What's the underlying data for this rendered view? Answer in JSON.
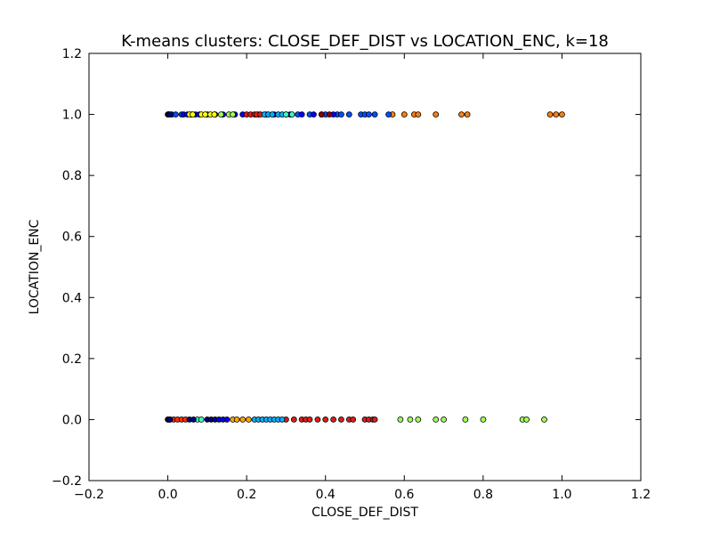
{
  "chart_data": {
    "type": "scatter",
    "title": "K-means clusters: CLOSE_DEF_DIST vs LOCATION_ENC, k=18",
    "xlabel": "CLOSE_DEF_DIST",
    "ylabel": "LOCATION_ENC",
    "xlim": [
      -0.2,
      1.2
    ],
    "ylim": [
      -0.2,
      1.2
    ],
    "x_ticks": [
      "−0.2",
      "0.0",
      "0.2",
      "0.4",
      "0.6",
      "0.8",
      "1.0",
      "1.2"
    ],
    "y_ticks": [
      "−0.2",
      "0.0",
      "0.2",
      "0.4",
      "0.6",
      "0.8",
      "1.0",
      "1.2"
    ],
    "grid": false,
    "legend": "none",
    "colors": [
      "#000080",
      "#0000ff",
      "#0050ff",
      "#00b0ff",
      "#40ffb8",
      "#a0ff58",
      "#ffff00",
      "#ffa500",
      "#ff7f0e",
      "#ff3000",
      "#dd1c1c",
      "#8b0000"
    ],
    "series": [
      {
        "color": "#ff7f0e",
        "points": [
          [
            0.57,
            1
          ],
          [
            0.6,
            1
          ],
          [
            0.625,
            1
          ],
          [
            0.635,
            1
          ],
          [
            0.68,
            1
          ],
          [
            0.745,
            1
          ],
          [
            0.76,
            1
          ],
          [
            0.97,
            1
          ],
          [
            0.985,
            1
          ],
          [
            1.0,
            1
          ]
        ]
      },
      {
        "color": "#0050ff",
        "points": [
          [
            0.003,
            1
          ],
          [
            0.01,
            1
          ],
          [
            0.02,
            1
          ],
          [
            0.035,
            1
          ],
          [
            0.3,
            1
          ],
          [
            0.33,
            1
          ],
          [
            0.36,
            1
          ],
          [
            0.4,
            1
          ],
          [
            0.43,
            1
          ],
          [
            0.44,
            1
          ],
          [
            0.46,
            1
          ],
          [
            0.49,
            1
          ],
          [
            0.5,
            1
          ],
          [
            0.51,
            1
          ],
          [
            0.525,
            1
          ],
          [
            0.56,
            1
          ]
        ]
      },
      {
        "color": "#0000ff",
        "points": [
          [
            0.04,
            1
          ],
          [
            0.05,
            1
          ],
          [
            0.06,
            1
          ],
          [
            0.07,
            1
          ],
          [
            0.08,
            1
          ],
          [
            0.1,
            1
          ],
          [
            0.12,
            1
          ],
          [
            0.14,
            1
          ],
          [
            0.17,
            1
          ],
          [
            0.19,
            1
          ],
          [
            0.23,
            1
          ],
          [
            0.25,
            1
          ],
          [
            0.27,
            1
          ],
          [
            0.31,
            1
          ],
          [
            0.34,
            1
          ],
          [
            0.37,
            1
          ],
          [
            0.39,
            1
          ],
          [
            0.42,
            1
          ]
        ]
      },
      {
        "color": "#ffff00",
        "points": [
          [
            0.055,
            1
          ],
          [
            0.063,
            1
          ],
          [
            0.085,
            1
          ],
          [
            0.095,
            1
          ],
          [
            0.108,
            1
          ],
          [
            0.118,
            1
          ]
        ]
      },
      {
        "color": "#a0ff58",
        "points": [
          [
            0.135,
            1
          ],
          [
            0.155,
            1
          ],
          [
            0.165,
            1
          ],
          [
            0.59,
            0
          ],
          [
            0.615,
            0
          ],
          [
            0.635,
            0
          ],
          [
            0.68,
            0
          ],
          [
            0.7,
            0
          ],
          [
            0.755,
            0
          ],
          [
            0.8,
            0
          ],
          [
            0.9,
            0
          ],
          [
            0.91,
            0
          ],
          [
            0.955,
            0
          ]
        ]
      },
      {
        "color": "#dd1c1c",
        "points": [
          [
            0.2,
            1
          ],
          [
            0.21,
            1
          ],
          [
            0.22,
            1
          ],
          [
            0.225,
            1
          ],
          [
            0.235,
            1
          ],
          [
            0.3,
            0
          ],
          [
            0.32,
            0
          ],
          [
            0.34,
            0
          ],
          [
            0.35,
            0
          ],
          [
            0.36,
            0
          ],
          [
            0.38,
            0
          ],
          [
            0.4,
            0
          ],
          [
            0.42,
            0
          ],
          [
            0.44,
            0
          ],
          [
            0.46,
            0
          ],
          [
            0.47,
            0
          ],
          [
            0.5,
            0
          ],
          [
            0.51,
            0
          ],
          [
            0.52,
            0
          ],
          [
            0.525,
            0
          ]
        ]
      },
      {
        "color": "#00b0ff",
        "points": [
          [
            0.245,
            1
          ],
          [
            0.255,
            1
          ],
          [
            0.265,
            1
          ],
          [
            0.28,
            1
          ],
          [
            0.29,
            1
          ],
          [
            0.22,
            0
          ],
          [
            0.23,
            0
          ],
          [
            0.24,
            0
          ],
          [
            0.25,
            0
          ],
          [
            0.26,
            0
          ],
          [
            0.27,
            0
          ],
          [
            0.28,
            0
          ],
          [
            0.29,
            0
          ]
        ]
      },
      {
        "color": "#40ffb8",
        "points": [
          [
            0.3,
            1
          ],
          [
            0.315,
            1
          ],
          [
            0.075,
            0
          ],
          [
            0.085,
            0
          ]
        ]
      },
      {
        "color": "#ff3000",
        "points": [
          [
            0.005,
            0
          ],
          [
            0.015,
            0
          ],
          [
            0.025,
            0
          ],
          [
            0.035,
            0
          ],
          [
            0.045,
            0
          ]
        ]
      },
      {
        "color": "#000080",
        "points": [
          [
            0.0,
            1
          ],
          [
            0.001,
            1
          ],
          [
            0.002,
            1
          ],
          [
            0.004,
            1
          ],
          [
            0.006,
            1
          ],
          [
            0.0,
            0
          ],
          [
            0.001,
            0
          ],
          [
            0.002,
            0
          ],
          [
            0.004,
            0
          ],
          [
            0.006,
            0
          ],
          [
            0.055,
            0
          ],
          [
            0.065,
            0
          ],
          [
            0.1,
            0
          ],
          [
            0.11,
            0
          ],
          [
            0.12,
            0
          ]
        ]
      },
      {
        "color": "#0000ff",
        "points": [
          [
            0.13,
            0
          ],
          [
            0.14,
            0
          ],
          [
            0.15,
            0
          ]
        ]
      },
      {
        "color": "#ffa500",
        "points": [
          [
            0.165,
            0
          ],
          [
            0.175,
            0
          ],
          [
            0.19,
            0
          ],
          [
            0.205,
            0
          ]
        ]
      },
      {
        "color": "#8b0000",
        "points": [
          [
            0.39,
            1
          ],
          [
            0.41,
            1
          ]
        ]
      }
    ]
  }
}
